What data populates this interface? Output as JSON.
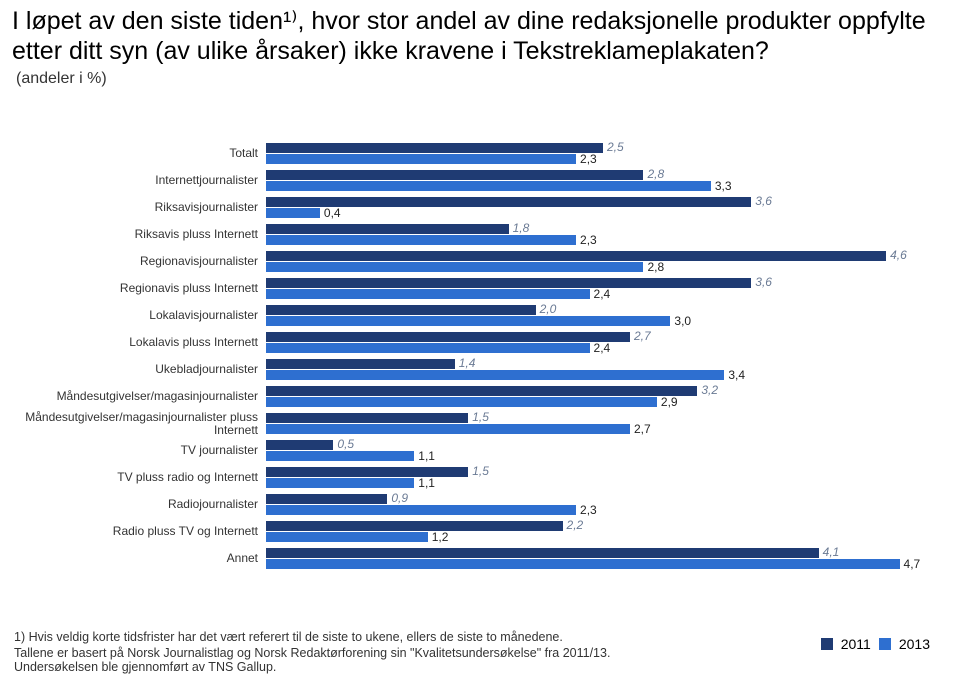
{
  "title": "I løpet av den siste tiden¹⁾, hvor stor andel av dine redaksjonelle produkter oppfylte etter ditt syn (av ulike årsaker) ikke kravene i Tekstreklameplakaten?",
  "subtitle": "(andeler i %)",
  "colors": {
    "series1": "#1f3b73",
    "series2": "#2e6fd0",
    "val1_text": "#6a7a94",
    "val2_text": "#222222"
  },
  "legend": {
    "s1": "2011",
    "s2": "2013"
  },
  "chart": {
    "xmax": 5.0,
    "categories": [
      {
        "label": "Totalt",
        "v1": 2.5,
        "v2": 2.3
      },
      {
        "label": "Internettjournalister",
        "v1": 2.8,
        "v2": 3.3
      },
      {
        "label": "Riksavisjournalister",
        "v1": 3.6,
        "v2": 0.4,
        "v1_italic": true
      },
      {
        "label": "Riksavis pluss Internett",
        "v1": 1.8,
        "v2": 2.3,
        "v1_italic": true
      },
      {
        "label": "Regionavisjournalister",
        "v1": 4.6,
        "v2": 2.8,
        "v1_italic": true
      },
      {
        "label": "Regionavis pluss Internett",
        "v1": 3.6,
        "v2": 2.4,
        "v1_italic": true
      },
      {
        "label": "Lokalavisjournalister",
        "v1": 2.0,
        "v2": 3.0,
        "v1_italic": true
      },
      {
        "label": "Lokalavis pluss Internett",
        "v1": 2.7,
        "v2": 2.4
      },
      {
        "label": "Ukebladjournalister",
        "v1": 1.4,
        "v2": 3.4,
        "v1_italic": true
      },
      {
        "label": "Måndesutgivelser/magasinjournalister",
        "v1": 3.2,
        "v2": 2.9,
        "v1_italic": true
      },
      {
        "label": "Måndesutgivelser/magasinjournalister pluss Internett",
        "v1": 1.5,
        "v2": 2.7,
        "v1_italic": true
      },
      {
        "label": "TV journalister",
        "v1": 0.5,
        "v2": 1.1,
        "v1_italic": true
      },
      {
        "label": "TV pluss radio og Internett",
        "v1": 1.5,
        "v2": 1.1,
        "v1_italic": true
      },
      {
        "label": "Radiojournalister",
        "v1": 0.9,
        "v2": 2.3,
        "v1_italic": true
      },
      {
        "label": "Radio pluss TV og Internett",
        "v1": 2.2,
        "v2": 1.2,
        "v1_italic": true
      },
      {
        "label": "Annet",
        "v1": 4.1,
        "v2": 4.7,
        "v1_italic": true
      }
    ]
  },
  "footnotes": {
    "f1": "1)  Hvis veldig korte tidsfrister  har det vært referert til de siste to ukene, ellers  de siste to månedene.",
    "f2": "Tallene er  basert på Norsk Journalistlag og Norsk Redaktørforening sin \"Kvalitetsundersøkelse\" fra 2011/13.",
    "f3": "Undersøkelsen ble gjennomført av TNS Gallup."
  }
}
